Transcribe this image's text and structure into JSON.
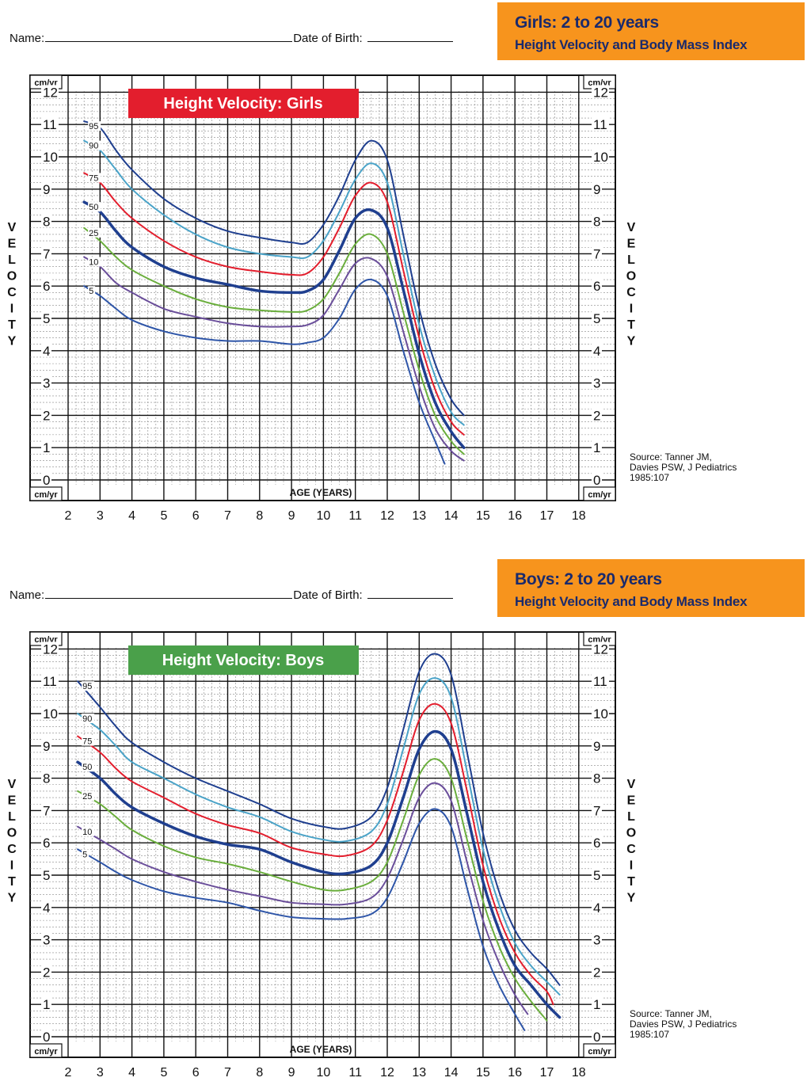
{
  "header_common": {
    "name_label": "Name:",
    "dob_label": "Date of Birth:"
  },
  "girls_header": {
    "title_line1": "Girls: 2 to 20 years",
    "title_line2": "Height Velocity and Body Mass Index",
    "title_bg": "#f7941d",
    "title_color": "#1a2a6c"
  },
  "boys_header": {
    "title_line1": "Boys: 2 to 20 years",
    "title_line2": "Height Velocity and Body Mass Index",
    "title_bg": "#f7941d",
    "title_color": "#1a2a6c"
  },
  "chart_data": [
    {
      "type": "line",
      "title": "Height Velocity: Girls",
      "title_bg": "#e31e2d",
      "xlabel": "AGE (YEARS)",
      "ylabel": "VELOCITY",
      "yunit": "cm/yr",
      "xlim": [
        2,
        18
      ],
      "ylim": [
        0,
        12
      ],
      "x_ticks": [
        "2",
        "3",
        "4",
        "5",
        "6",
        "7",
        "8",
        "9",
        "10",
        "11",
        "12",
        "13",
        "14",
        "15",
        "16",
        "17",
        "18"
      ],
      "y_ticks": [
        "0",
        "1",
        "2",
        "3",
        "4",
        "5",
        "6",
        "7",
        "8",
        "9",
        "10",
        "11",
        "12"
      ],
      "grid": true,
      "source": [
        "Source: Tanner JM,",
        "Davies PSW, J Pediatrics",
        "1985:107"
      ],
      "series": [
        {
          "name": "95",
          "color": "#1f3f8f",
          "width": 2,
          "x": [
            2.5,
            3,
            3.5,
            4,
            5,
            6,
            7,
            8,
            9,
            9.5,
            10,
            10.5,
            11,
            11.5,
            12,
            12.5,
            13,
            13.5,
            14,
            14.4
          ],
          "y": [
            11.1,
            10.9,
            10.2,
            9.6,
            8.7,
            8.1,
            7.7,
            7.5,
            7.35,
            7.35,
            7.9,
            8.8,
            9.9,
            10.5,
            9.9,
            7.6,
            5.3,
            3.6,
            2.5,
            2.0
          ]
        },
        {
          "name": "90",
          "color": "#4aa3c8",
          "width": 2,
          "x": [
            2.5,
            3,
            3.5,
            4,
            5,
            6,
            7,
            8,
            9,
            9.5,
            10,
            10.5,
            11,
            11.5,
            12,
            12.5,
            13,
            13.5,
            14,
            14.4
          ],
          "y": [
            10.5,
            10.2,
            9.6,
            9.0,
            8.2,
            7.6,
            7.2,
            7.0,
            6.9,
            6.9,
            7.4,
            8.3,
            9.3,
            9.8,
            9.2,
            7.0,
            4.8,
            3.2,
            2.1,
            1.7
          ]
        },
        {
          "name": "75",
          "color": "#e31e2d",
          "width": 2,
          "x": [
            2.5,
            3,
            3.5,
            4,
            5,
            6,
            7,
            8,
            9,
            9.5,
            10,
            10.5,
            11,
            11.5,
            12,
            12.5,
            13,
            13.5,
            14,
            14.4
          ],
          "y": [
            9.5,
            9.2,
            8.6,
            8.1,
            7.4,
            6.9,
            6.6,
            6.45,
            6.35,
            6.4,
            6.9,
            7.8,
            8.8,
            9.2,
            8.6,
            6.5,
            4.4,
            2.8,
            1.8,
            1.4
          ]
        },
        {
          "name": "50",
          "color": "#1f3f8f",
          "width": 3.5,
          "x": [
            2.5,
            3,
            3.5,
            4,
            5,
            6,
            7,
            8,
            9,
            9.5,
            10,
            10.5,
            11,
            11.5,
            12,
            12.5,
            13,
            13.5,
            14,
            14.4
          ],
          "y": [
            8.6,
            8.3,
            7.7,
            7.2,
            6.6,
            6.25,
            6.05,
            5.85,
            5.8,
            5.85,
            6.2,
            7.1,
            8.1,
            8.35,
            7.8,
            5.9,
            3.9,
            2.4,
            1.5,
            1.0
          ]
        },
        {
          "name": "25",
          "color": "#6aae3c",
          "width": 2,
          "x": [
            2.5,
            3,
            3.5,
            4,
            5,
            6,
            7,
            8,
            9,
            9.5,
            10,
            10.5,
            11,
            11.5,
            12,
            12.5,
            13,
            13.5,
            14,
            14.4
          ],
          "y": [
            7.8,
            7.4,
            6.9,
            6.5,
            6.0,
            5.6,
            5.35,
            5.25,
            5.2,
            5.25,
            5.6,
            6.4,
            7.3,
            7.6,
            7.0,
            5.2,
            3.4,
            2.0,
            1.2,
            0.8
          ]
        },
        {
          "name": "10",
          "color": "#6a4e9a",
          "width": 2,
          "x": [
            2.5,
            3,
            3.5,
            4,
            5,
            6,
            7,
            8,
            9,
            9.5,
            10,
            10.5,
            11,
            11.5,
            12,
            12.5,
            13,
            13.5,
            14,
            14.4
          ],
          "y": [
            6.9,
            6.6,
            6.1,
            5.8,
            5.3,
            5.05,
            4.85,
            4.75,
            4.75,
            4.8,
            5.1,
            5.9,
            6.7,
            6.85,
            6.3,
            4.6,
            2.9,
            1.6,
            0.9,
            0.6
          ]
        },
        {
          "name": "5",
          "color": "#2e55a8",
          "width": 2,
          "x": [
            2.5,
            3,
            3.5,
            4,
            5,
            6,
            7,
            8,
            9,
            9.5,
            10,
            10.5,
            11,
            11.5,
            12,
            12.5,
            13,
            13.5,
            13.8
          ],
          "y": [
            6.0,
            5.7,
            5.3,
            4.95,
            4.6,
            4.4,
            4.3,
            4.3,
            4.2,
            4.25,
            4.4,
            5.0,
            5.9,
            6.2,
            5.7,
            4.0,
            2.4,
            1.2,
            0.5
          ]
        }
      ]
    },
    {
      "type": "line",
      "title": "Height Velocity: Boys",
      "title_bg": "#4aa04a",
      "xlabel": "AGE (YEARS)",
      "ylabel": "VELOCITY",
      "yunit": "cm/yr",
      "xlim": [
        2,
        18
      ],
      "ylim": [
        0,
        12
      ],
      "x_ticks": [
        "2",
        "3",
        "4",
        "5",
        "6",
        "7",
        "8",
        "9",
        "10",
        "11",
        "12",
        "13",
        "14",
        "15",
        "16",
        "17",
        "18"
      ],
      "y_ticks": [
        "0",
        "1",
        "2",
        "3",
        "4",
        "5",
        "6",
        "7",
        "8",
        "9",
        "10",
        "11",
        "12"
      ],
      "grid": true,
      "source": [
        "Source: Tanner JM,",
        "Davies PSW, J Pediatrics",
        "1985:107"
      ],
      "series": [
        {
          "name": "95",
          "color": "#1f3f8f",
          "width": 2,
          "x": [
            2.3,
            3,
            3.5,
            4,
            5,
            6,
            7,
            8,
            9,
            10,
            10.7,
            11.5,
            12,
            12.5,
            13,
            13.5,
            14,
            14.5,
            15,
            15.5,
            16,
            16.5,
            17,
            17.4
          ],
          "y": [
            11.0,
            10.2,
            9.6,
            9.1,
            8.5,
            8.0,
            7.6,
            7.2,
            6.75,
            6.5,
            6.45,
            6.8,
            7.7,
            9.5,
            11.3,
            11.85,
            11.2,
            8.8,
            6.3,
            4.5,
            3.3,
            2.6,
            2.1,
            1.6
          ]
        },
        {
          "name": "90",
          "color": "#4aa3c8",
          "width": 2,
          "x": [
            2.3,
            3,
            3.5,
            4,
            5,
            6,
            7,
            8,
            9,
            10,
            10.7,
            11.5,
            12,
            12.5,
            13,
            13.5,
            14,
            14.5,
            15,
            15.5,
            16,
            16.5,
            17,
            17.4
          ],
          "y": [
            10.0,
            9.5,
            9.0,
            8.5,
            8.0,
            7.5,
            7.1,
            6.8,
            6.35,
            6.1,
            6.05,
            6.35,
            7.2,
            8.9,
            10.6,
            11.1,
            10.5,
            8.2,
            5.8,
            4.1,
            2.9,
            2.2,
            1.7,
            1.3
          ]
        },
        {
          "name": "75",
          "color": "#e31e2d",
          "width": 2,
          "x": [
            2.3,
            3,
            3.5,
            4,
            5,
            6,
            7,
            8,
            9,
            10,
            10.7,
            11.5,
            12,
            12.5,
            13,
            13.5,
            14,
            14.5,
            15,
            15.5,
            16,
            16.5,
            17,
            17.2
          ],
          "y": [
            9.3,
            8.8,
            8.3,
            7.9,
            7.4,
            6.9,
            6.55,
            6.3,
            5.85,
            5.65,
            5.6,
            5.9,
            6.7,
            8.2,
            9.8,
            10.3,
            9.7,
            7.6,
            5.3,
            3.7,
            2.6,
            1.9,
            1.4,
            1.0
          ]
        },
        {
          "name": "50",
          "color": "#1f3f8f",
          "width": 3.5,
          "x": [
            2.3,
            3,
            3.5,
            4,
            5,
            6,
            7,
            8,
            9,
            10,
            10.7,
            11.5,
            12,
            12.5,
            13,
            13.5,
            14,
            14.5,
            15,
            15.5,
            16,
            16.5,
            17,
            17.4
          ],
          "y": [
            8.5,
            8.0,
            7.5,
            7.1,
            6.6,
            6.2,
            5.95,
            5.8,
            5.4,
            5.1,
            5.05,
            5.3,
            6.0,
            7.4,
            8.9,
            9.45,
            8.9,
            6.9,
            4.8,
            3.3,
            2.2,
            1.6,
            1.0,
            0.6
          ]
        },
        {
          "name": "25",
          "color": "#6aae3c",
          "width": 2,
          "x": [
            2.3,
            3,
            3.5,
            4,
            5,
            6,
            7,
            8,
            9,
            10,
            10.7,
            11.5,
            12,
            12.5,
            13,
            13.5,
            14,
            14.5,
            15,
            15.5,
            16,
            16.5,
            17
          ],
          "y": [
            7.6,
            7.2,
            6.8,
            6.4,
            5.9,
            5.55,
            5.35,
            5.1,
            4.8,
            4.55,
            4.55,
            4.8,
            5.4,
            6.7,
            8.1,
            8.6,
            8.0,
            6.1,
            4.2,
            2.8,
            1.8,
            1.1,
            0.5
          ]
        },
        {
          "name": "10",
          "color": "#6a4e9a",
          "width": 2,
          "x": [
            2.3,
            3,
            3.5,
            4,
            5,
            6,
            7,
            8,
            9,
            10,
            10.7,
            11.5,
            12,
            12.5,
            13,
            13.5,
            14,
            14.5,
            15,
            15.5,
            16,
            16.4
          ],
          "y": [
            6.5,
            6.1,
            5.8,
            5.5,
            5.1,
            4.8,
            4.55,
            4.35,
            4.15,
            4.1,
            4.1,
            4.3,
            4.9,
            6.1,
            7.4,
            7.85,
            7.3,
            5.4,
            3.6,
            2.3,
            1.3,
            0.7
          ]
        },
        {
          "name": "5",
          "color": "#2e55a8",
          "width": 2,
          "x": [
            2.3,
            3,
            3.5,
            4,
            5,
            6,
            7,
            8,
            9,
            10,
            10.7,
            11.5,
            12,
            12.5,
            13,
            13.5,
            14,
            14.5,
            15,
            15.5,
            16,
            16.3
          ],
          "y": [
            5.8,
            5.4,
            5.1,
            4.85,
            4.5,
            4.3,
            4.15,
            3.9,
            3.7,
            3.65,
            3.65,
            3.8,
            4.3,
            5.4,
            6.6,
            7.05,
            6.5,
            4.6,
            2.8,
            1.6,
            0.7,
            0.2
          ]
        }
      ]
    }
  ]
}
